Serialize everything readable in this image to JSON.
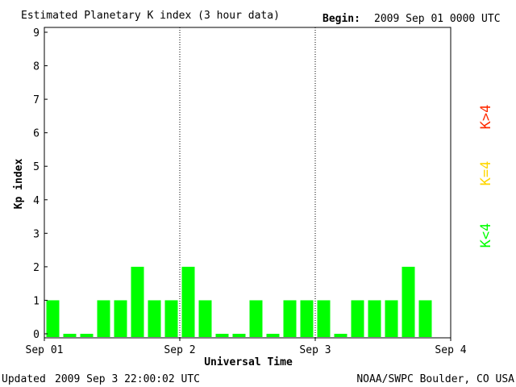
{
  "header": {
    "title": "Estimated Planetary K index (3 hour data)",
    "begin_label": "Begin:",
    "begin_value": "2009 Sep 01 0000 UTC"
  },
  "footer": {
    "updated_label": "Updated",
    "updated_value": "2009 Sep  3 22:00:02 UTC",
    "source": "NOAA/SWPC Boulder, CO USA"
  },
  "legend": [
    {
      "label": "K>4",
      "color": "#ff2a00"
    },
    {
      "label": "K=4",
      "color": "#ffd700"
    },
    {
      "label": "K<4",
      "color": "#00ff00"
    }
  ],
  "chart_data": {
    "type": "bar",
    "title": "Estimated Planetary K index (3 hour data)",
    "xlabel": "Universal Time",
    "ylabel": "Kp index",
    "ylim": [
      0,
      9
    ],
    "yticks": [
      0,
      1,
      2,
      3,
      4,
      5,
      6,
      7,
      8,
      9
    ],
    "xtick_labels": [
      "Sep 01",
      "Sep 2",
      "Sep 3",
      "Sep 4"
    ],
    "day_dividers": [
      "Sep 2",
      "Sep 3"
    ],
    "bar_color": "#00ff00",
    "slots_per_day": 8,
    "total_slots": 24,
    "values": [
      1,
      0,
      0,
      1,
      1,
      2,
      1,
      1,
      2,
      1,
      0,
      0,
      1,
      0,
      1,
      1,
      1,
      0,
      1,
      1,
      1,
      2,
      1
    ]
  }
}
